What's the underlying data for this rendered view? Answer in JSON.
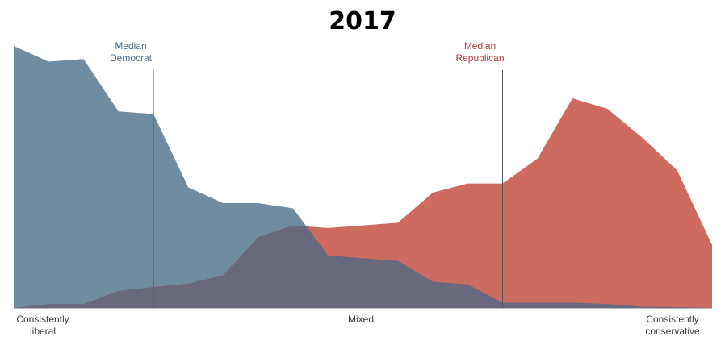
{
  "chart_data": {
    "type": "area",
    "title": "2017",
    "xlabel": "",
    "ylabel": "",
    "x": [
      1,
      2,
      3,
      4,
      5,
      6,
      7,
      8,
      9,
      10,
      11,
      12,
      13,
      14,
      15,
      16,
      17,
      18,
      19,
      20,
      21
    ],
    "xlim": [
      1,
      21
    ],
    "ylim": [
      0,
      100
    ],
    "series": [
      {
        "values": [
          100,
          94,
          95,
          75,
          74,
          46,
          40,
          40,
          38,
          20,
          19,
          18,
          10,
          9,
          2,
          2,
          2,
          1.5,
          0.5,
          0.3,
          0
        ],
        "color": "#6f8ca1"
      },
      {
        "values": [
          0,
          1.5,
          1.5,
          6.5,
          8,
          9.3,
          12.5,
          27,
          31.5,
          30.5,
          31.5,
          32.5,
          44,
          47.5,
          47.5,
          57,
          80,
          76,
          65,
          52.5,
          24
        ],
        "color": "#cd6b60"
      }
    ],
    "overlap_color": "#68697c",
    "medians": [
      {
        "label_line1": "Median",
        "label_line2": "Democrat",
        "x": 5,
        "color": "#4a6a88"
      },
      {
        "label_line1": "Median",
        "label_line2": "Republican",
        "x": 15,
        "color": "#b43a35"
      }
    ],
    "axis_labels": {
      "left_line1": "Consistently",
      "left_line2": "liberal",
      "center": "Mixed",
      "right_line1": "Consistently",
      "right_line2": "conservative"
    },
    "grid": false,
    "legend": "none"
  }
}
